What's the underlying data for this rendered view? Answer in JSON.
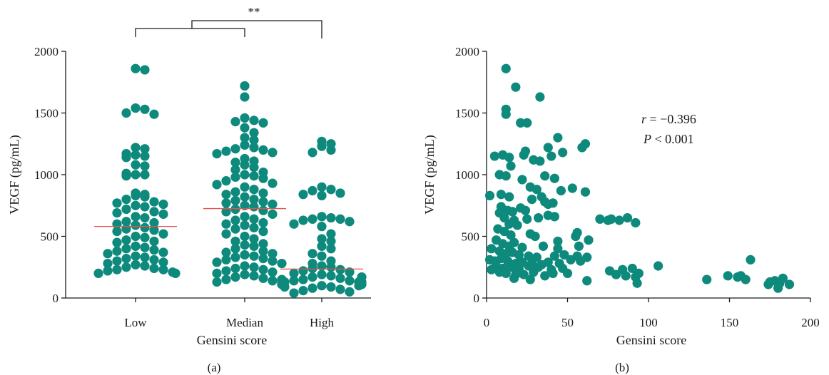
{
  "chart_data": [
    {
      "panel_label": "(a)",
      "type": "scatter",
      "subtype": "grouped dot plot",
      "ylabel": "VEGF (pg/mL)",
      "xlabel": "Gensini score",
      "ylim": [
        0,
        2000
      ],
      "yticks": [
        "0",
        "500",
        "1000",
        "1500",
        "2000"
      ],
      "categories": [
        "Low",
        "Median",
        "High"
      ],
      "point_color": "#0e8a7d",
      "median_color": "#e8504c",
      "medians": [
        580,
        725,
        235
      ],
      "significance": {
        "label": "**",
        "between": [
          "Low+Median",
          "High"
        ]
      },
      "groups": [
        {
          "name": "Low",
          "values": [
            1860,
            1850,
            1540,
            1530,
            1500,
            1490,
            1220,
            1210,
            1170,
            1160,
            1150,
            1140,
            1080,
            1070,
            1010,
            1000,
            1000,
            990,
            850,
            840,
            830,
            820,
            800,
            780,
            770,
            760,
            750,
            740,
            720,
            700,
            690,
            680,
            660,
            650,
            620,
            610,
            600,
            590,
            570,
            560,
            550,
            540,
            520,
            500,
            490,
            470,
            460,
            450,
            420,
            410,
            400,
            390,
            380,
            370,
            360,
            340,
            330,
            320,
            310,
            300,
            290,
            280,
            270,
            260,
            250,
            240,
            230,
            230,
            220,
            210,
            200,
            200
          ]
        },
        {
          "name": "Median",
          "values": [
            1720,
            1630,
            1460,
            1440,
            1430,
            1420,
            1380,
            1340,
            1300,
            1280,
            1240,
            1220,
            1210,
            1200,
            1190,
            1180,
            1170,
            1130,
            1110,
            1100,
            1080,
            1060,
            1040,
            1020,
            1000,
            990,
            980,
            970,
            950,
            930,
            920,
            900,
            880,
            860,
            850,
            840,
            820,
            800,
            790,
            780,
            770,
            760,
            750,
            740,
            720,
            710,
            700,
            680,
            660,
            640,
            630,
            610,
            600,
            590,
            570,
            560,
            540,
            520,
            500,
            480,
            460,
            440,
            430,
            420,
            400,
            380,
            370,
            360,
            350,
            340,
            330,
            320,
            310,
            300,
            290,
            280,
            260,
            250,
            240,
            230,
            220,
            210,
            200,
            190,
            180,
            170,
            160,
            150,
            140,
            130
          ]
        },
        {
          "name": "High",
          "values": [
            1270,
            1250,
            1230,
            1200,
            1180,
            900,
            880,
            870,
            850,
            840,
            830,
            660,
            650,
            640,
            640,
            630,
            620,
            600,
            580,
            520,
            480,
            460,
            420,
            400,
            360,
            340,
            300,
            280,
            260,
            250,
            240,
            230,
            220,
            210,
            200,
            190,
            180,
            170,
            160,
            150,
            140,
            140,
            130,
            130,
            120,
            110,
            100,
            90,
            80,
            70,
            60,
            50,
            40,
            130,
            150,
            170,
            120,
            110,
            100,
            90
          ]
        }
      ]
    },
    {
      "panel_label": "(b)",
      "type": "scatter",
      "xlabel": "Gensini score",
      "ylabel": "VEGF (pg/mL)",
      "xlim": [
        0,
        200
      ],
      "ylim": [
        0,
        2000
      ],
      "xticks": [
        "0",
        "50",
        "100",
        "150",
        "200"
      ],
      "yticks": [
        "0",
        "500",
        "1000",
        "1500",
        "2000"
      ],
      "point_color": "#0e8a7d",
      "stat_r_label": "r",
      "stat_r_value": " = −0.396",
      "stat_p_label": "P",
      "stat_p_value": " < 0.001",
      "points": [
        [
          12,
          1860
        ],
        [
          18,
          1710
        ],
        [
          33,
          1630
        ],
        [
          12,
          1530
        ],
        [
          12,
          1490
        ],
        [
          21,
          1420
        ],
        [
          25,
          1420
        ],
        [
          44,
          1300
        ],
        [
          61,
          1250
        ],
        [
          59,
          1220
        ],
        [
          38,
          1220
        ],
        [
          24,
          1190
        ],
        [
          23,
          1160
        ],
        [
          5,
          1150
        ],
        [
          10,
          1160
        ],
        [
          14,
          1140
        ],
        [
          40,
          1150
        ],
        [
          33,
          1110
        ],
        [
          29,
          1120
        ],
        [
          47,
          1180
        ],
        [
          8,
          1000
        ],
        [
          12,
          990
        ],
        [
          15,
          1070
        ],
        [
          22,
          960
        ],
        [
          36,
          990
        ],
        [
          42,
          970
        ],
        [
          27,
          900
        ],
        [
          9,
          840
        ],
        [
          14,
          820
        ],
        [
          2,
          830
        ],
        [
          31,
          880
        ],
        [
          34,
          820
        ],
        [
          46,
          870
        ],
        [
          53,
          890
        ],
        [
          61,
          860
        ],
        [
          28,
          800
        ],
        [
          36,
          780
        ],
        [
          41,
          770
        ],
        [
          38,
          760
        ],
        [
          9,
          740
        ],
        [
          13,
          710
        ],
        [
          16,
          700
        ],
        [
          21,
          730
        ],
        [
          24,
          710
        ],
        [
          8,
          690
        ],
        [
          11,
          650
        ],
        [
          17,
          630
        ],
        [
          25,
          640
        ],
        [
          32,
          650
        ],
        [
          38,
          670
        ],
        [
          42,
          660
        ],
        [
          70,
          640
        ],
        [
          75,
          630
        ],
        [
          77,
          640
        ],
        [
          82,
          630
        ],
        [
          87,
          650
        ],
        [
          92,
          610
        ],
        [
          14,
          600
        ],
        [
          19,
          590
        ],
        [
          7,
          560
        ],
        [
          11,
          540
        ],
        [
          15,
          510
        ],
        [
          27,
          520
        ],
        [
          30,
          500
        ],
        [
          44,
          460
        ],
        [
          55,
          500
        ],
        [
          56,
          530
        ],
        [
          63,
          470
        ],
        [
          6,
          470
        ],
        [
          10,
          440
        ],
        [
          14,
          420
        ],
        [
          17,
          450
        ],
        [
          22,
          410
        ],
        [
          35,
          420
        ],
        [
          44,
          400
        ],
        [
          57,
          420
        ],
        [
          3,
          400
        ],
        [
          8,
          380
        ],
        [
          12,
          360
        ],
        [
          16,
          370
        ],
        [
          20,
          350
        ],
        [
          26,
          340
        ],
        [
          31,
          330
        ],
        [
          42,
          340
        ],
        [
          48,
          350
        ],
        [
          56,
          340
        ],
        [
          62,
          330
        ],
        [
          2,
          310
        ],
        [
          5,
          300
        ],
        [
          9,
          320
        ],
        [
          13,
          300
        ],
        [
          18,
          280
        ],
        [
          22,
          290
        ],
        [
          28,
          280
        ],
        [
          34,
          270
        ],
        [
          38,
          290
        ],
        [
          45,
          280
        ],
        [
          52,
          310
        ],
        [
          58,
          300
        ],
        [
          6,
          260
        ],
        [
          10,
          240
        ],
        [
          15,
          250
        ],
        [
          20,
          240
        ],
        [
          26,
          260
        ],
        [
          32,
          250
        ],
        [
          40,
          230
        ],
        [
          47,
          240
        ],
        [
          3,
          230
        ],
        [
          8,
          210
        ],
        [
          12,
          200
        ],
        [
          18,
          190
        ],
        [
          23,
          190
        ],
        [
          29,
          210
        ],
        [
          36,
          180
        ],
        [
          41,
          200
        ],
        [
          50,
          200
        ],
        [
          76,
          220
        ],
        [
          84,
          230
        ],
        [
          90,
          240
        ],
        [
          106,
          260
        ],
        [
          80,
          190
        ],
        [
          86,
          180
        ],
        [
          92,
          170
        ],
        [
          94,
          200
        ],
        [
          17,
          160
        ],
        [
          27,
          150
        ],
        [
          62,
          140
        ],
        [
          93,
          120
        ],
        [
          136,
          150
        ],
        [
          149,
          180
        ],
        [
          155,
          170
        ],
        [
          157,
          180
        ],
        [
          160,
          150
        ],
        [
          163,
          310
        ],
        [
          175,
          130
        ],
        [
          178,
          140
        ],
        [
          181,
          120
        ],
        [
          183,
          160
        ],
        [
          187,
          110
        ],
        [
          180,
          80
        ],
        [
          174,
          110
        ]
      ]
    }
  ]
}
